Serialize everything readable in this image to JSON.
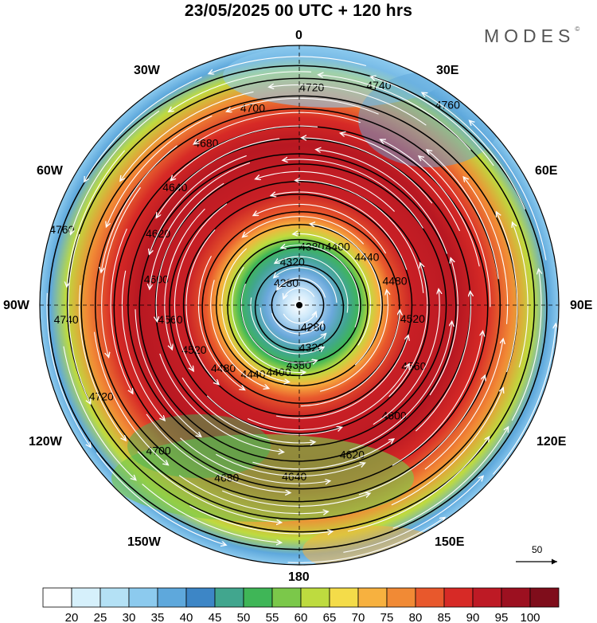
{
  "title": "23/05/2025  00 UTC  + 120 hrs",
  "brand": {
    "name": "MODES",
    "mark": "©"
  },
  "longitude_labels": {
    "top": "0",
    "top_left": "30W",
    "top_right": "30E",
    "left_upper": "60W",
    "right_upper": "60E",
    "left": "90W",
    "right": "90E",
    "left_lower": "120W",
    "right_lower": "120E",
    "bottom_left": "150W",
    "bottom_right": "150E",
    "bottom": "180"
  },
  "vector_scale": {
    "label": "50"
  },
  "contours": [
    {
      "label": "4280",
      "radius": 0.1
    },
    {
      "label": "4320",
      "radius": 0.17
    },
    {
      "label": "4380",
      "radius": 0.23
    },
    {
      "label": "4400",
      "radius": 0.27
    },
    {
      "label": "4440",
      "radius": 0.32
    },
    {
      "label": "4480",
      "radius": 0.38
    },
    {
      "label": "4520",
      "radius": 0.44
    },
    {
      "label": "4560",
      "radius": 0.5
    },
    {
      "label": "4600",
      "radius": 0.56
    },
    {
      "label": "4620",
      "radius": 0.61
    },
    {
      "label": "4640",
      "radius": 0.66
    },
    {
      "label": "4680",
      "radius": 0.72
    },
    {
      "label": "4700",
      "radius": 0.78
    },
    {
      "label": "4720",
      "radius": 0.84
    },
    {
      "label": "4740",
      "radius": 0.9
    },
    {
      "label": "4760",
      "radius": 0.96
    }
  ],
  "colorbar": {
    "labels": [
      "20",
      "25",
      "30",
      "35",
      "40",
      "45",
      "50",
      "55",
      "60",
      "65",
      "70",
      "75",
      "80",
      "85",
      "90",
      "95",
      "100"
    ],
    "colors": [
      "#ffffff",
      "#d6f0fb",
      "#b4e1f5",
      "#8ccaee",
      "#5ea8dc",
      "#3d86c6",
      "#41a68e",
      "#3fb657",
      "#7bc84a",
      "#bedb3f",
      "#f4dc49",
      "#f7b13f",
      "#f18a35",
      "#e8582c",
      "#d72a26",
      "#be1a25",
      "#9c1020",
      "#7f0d1b"
    ]
  }
}
